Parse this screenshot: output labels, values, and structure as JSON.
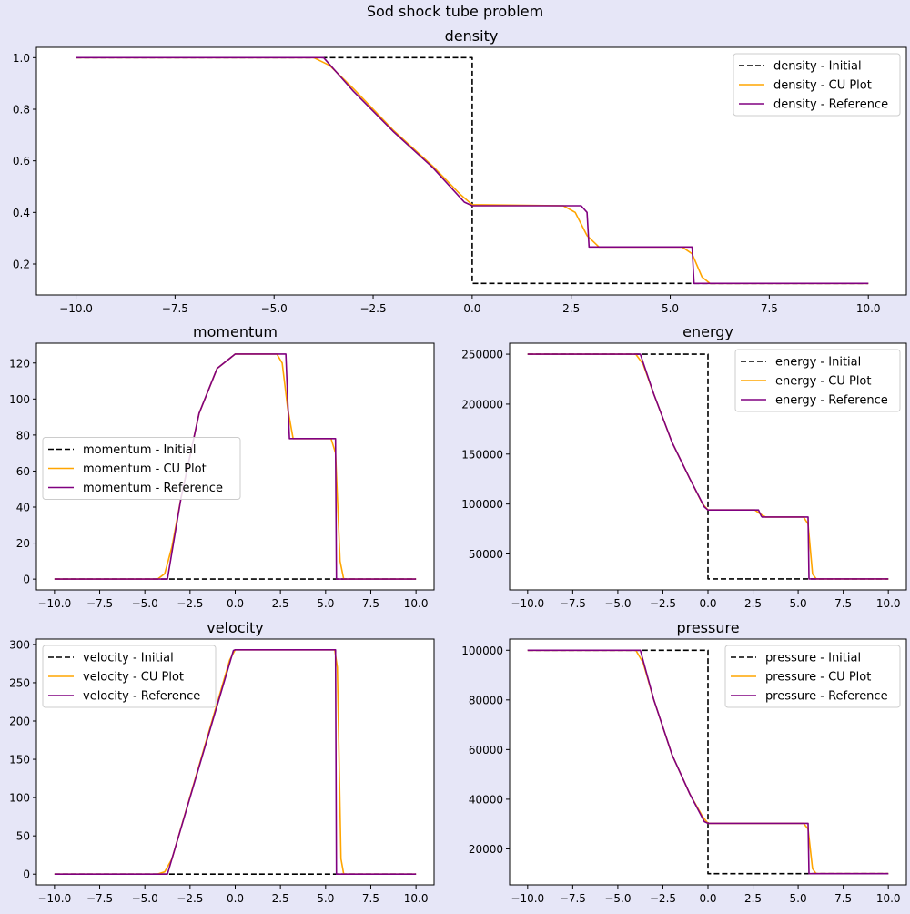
{
  "figure": {
    "suptitle": "Sod shock tube problem"
  },
  "colors": {
    "initial": "#000000",
    "cu": "#ffa500",
    "reference": "#800080",
    "background": "#e6e6f7",
    "axes_bg": "#ffffff"
  },
  "chart_data": [
    {
      "type": "line",
      "title": "density",
      "xlim": [
        -11,
        10.96
      ],
      "ylim": [
        0.08,
        1.04
      ],
      "xticks": [
        -10.0,
        -7.5,
        -5.0,
        -2.5,
        0.0,
        2.5,
        5.0,
        7.5,
        10.0
      ],
      "xtick_labels": [
        "−10.0",
        "−7.5",
        "−5.0",
        "−2.5",
        "0.0",
        "2.5",
        "5.0",
        "7.5",
        "10.0"
      ],
      "yticks": [
        0.2,
        0.4,
        0.6,
        0.8,
        1.0
      ],
      "ytick_labels": [
        "0.2",
        "0.4",
        "0.6",
        "0.8",
        "1.0"
      ],
      "legend": "top-right",
      "series": [
        {
          "name": "density - Initial",
          "style": "dashed",
          "color": "#000000",
          "x": [
            -10,
            0,
            0,
            10
          ],
          "y": [
            1.0,
            1.0,
            0.125,
            0.125
          ]
        },
        {
          "name": "density - CU Plot",
          "style": "solid",
          "color": "#ffa500",
          "x": [
            -10,
            -4.0,
            -3.6,
            -3.0,
            -2.0,
            -1.0,
            -0.3,
            0.0,
            2.3,
            2.6,
            2.9,
            3.2,
            5.3,
            5.55,
            5.8,
            6.0,
            10
          ],
          "y": [
            1.0,
            1.0,
            0.97,
            0.88,
            0.72,
            0.58,
            0.47,
            0.43,
            0.426,
            0.4,
            0.31,
            0.266,
            0.266,
            0.24,
            0.15,
            0.125,
            0.125
          ]
        },
        {
          "name": "density - Reference",
          "style": "solid",
          "color": "#800080",
          "x": [
            -10,
            -3.75,
            -3.0,
            -2.0,
            -1.0,
            -0.2,
            0.0,
            2.75,
            2.9,
            2.95,
            5.55,
            5.6,
            10
          ],
          "y": [
            1.0,
            1.0,
            0.87,
            0.715,
            0.575,
            0.44,
            0.426,
            0.426,
            0.4,
            0.266,
            0.266,
            0.125,
            0.125
          ]
        }
      ]
    },
    {
      "type": "line",
      "title": "momentum",
      "xlim": [
        -11,
        11
      ],
      "ylim": [
        -6,
        131
      ],
      "xticks": [
        -10.0,
        -7.5,
        -5.0,
        -2.5,
        0.0,
        2.5,
        5.0,
        7.5,
        10.0
      ],
      "xtick_labels": [
        "−10.0",
        "−7.5",
        "−5.0",
        "−2.5",
        "0.0",
        "2.5",
        "5.0",
        "7.5",
        "10.0"
      ],
      "yticks": [
        0,
        20,
        40,
        60,
        80,
        100,
        120
      ],
      "ytick_labels": [
        "0",
        "20",
        "40",
        "60",
        "80",
        "100",
        "120"
      ],
      "legend": "center-left",
      "series": [
        {
          "name": "momentum - Initial",
          "style": "dashed",
          "color": "#000000",
          "x": [
            -10,
            10
          ],
          "y": [
            0,
            0
          ]
        },
        {
          "name": "momentum - CU Plot",
          "style": "solid",
          "color": "#ffa500",
          "x": [
            -10,
            -4.3,
            -3.9,
            -3.5,
            -3.0,
            -2.0,
            -1.0,
            0.0,
            2.3,
            2.6,
            2.9,
            3.2,
            5.3,
            5.55,
            5.8,
            6.0,
            10
          ],
          "y": [
            0,
            0,
            3,
            18,
            45,
            92,
            117,
            125,
            125,
            120,
            95,
            78,
            78,
            70,
            10,
            0,
            0
          ]
        },
        {
          "name": "momentum - Reference",
          "style": "solid",
          "color": "#800080",
          "x": [
            -10,
            -3.75,
            -3.0,
            -2.0,
            -1.0,
            0.0,
            2.8,
            2.9,
            3.0,
            5.55,
            5.6,
            10
          ],
          "y": [
            0,
            0,
            45,
            92,
            117,
            125,
            125,
            100,
            78,
            78,
            0,
            0
          ]
        }
      ]
    },
    {
      "type": "line",
      "title": "energy",
      "xlim": [
        -11,
        11
      ],
      "ylim": [
        14000,
        261000
      ],
      "xticks": [
        -10.0,
        -7.5,
        -5.0,
        -2.5,
        0.0,
        2.5,
        5.0,
        7.5,
        10.0
      ],
      "xtick_labels": [
        "−10.0",
        "−7.5",
        "−5.0",
        "−2.5",
        "0.0",
        "2.5",
        "5.0",
        "7.5",
        "10.0"
      ],
      "yticks": [
        50000,
        100000,
        150000,
        200000,
        250000
      ],
      "ytick_labels": [
        "50000",
        "100000",
        "150000",
        "200000",
        "250000"
      ],
      "legend": "top-right",
      "series": [
        {
          "name": "energy - Initial",
          "style": "dashed",
          "color": "#000000",
          "x": [
            -10,
            0,
            0,
            10
          ],
          "y": [
            250000,
            250000,
            25000,
            25000
          ]
        },
        {
          "name": "energy - CU Plot",
          "style": "solid",
          "color": "#ffa500",
          "x": [
            -10,
            -4.0,
            -3.6,
            -3.0,
            -2.0,
            -1.0,
            -0.3,
            0.0,
            2.6,
            2.9,
            3.2,
            5.3,
            5.55,
            5.8,
            6.0,
            10
          ],
          "y": [
            250000,
            250000,
            240000,
            210000,
            162000,
            125000,
            100000,
            94000,
            94000,
            90000,
            87000,
            87000,
            80000,
            30000,
            25000,
            25000
          ]
        },
        {
          "name": "energy - Reference",
          "style": "solid",
          "color": "#800080",
          "x": [
            -10,
            -3.75,
            -3.0,
            -2.0,
            -1.0,
            -0.2,
            0.0,
            2.8,
            2.95,
            3.0,
            5.55,
            5.6,
            10
          ],
          "y": [
            250000,
            250000,
            210000,
            162000,
            125000,
            97000,
            94000,
            94000,
            88000,
            87000,
            87000,
            25000,
            25000
          ]
        }
      ]
    },
    {
      "type": "line",
      "title": "velocity",
      "xlim": [
        -11,
        11
      ],
      "ylim": [
        -14,
        307
      ],
      "xticks": [
        -10.0,
        -7.5,
        -5.0,
        -2.5,
        0.0,
        2.5,
        5.0,
        7.5,
        10.0
      ],
      "xtick_labels": [
        "−10.0",
        "−7.5",
        "−5.0",
        "−2.5",
        "0.0",
        "2.5",
        "5.0",
        "7.5",
        "10.0"
      ],
      "yticks": [
        0,
        50,
        100,
        150,
        200,
        250,
        300
      ],
      "ytick_labels": [
        "0",
        "50",
        "100",
        "150",
        "200",
        "250",
        "300"
      ],
      "legend": "top-left",
      "series": [
        {
          "name": "velocity - Initial",
          "style": "dashed",
          "color": "#000000",
          "x": [
            -10,
            10
          ],
          "y": [
            0,
            0
          ]
        },
        {
          "name": "velocity - CU Plot",
          "style": "solid",
          "color": "#ffa500",
          "x": [
            -10,
            -4.3,
            -3.9,
            -3.5,
            -0.3,
            0.0,
            5.5,
            5.65,
            5.85,
            6.0,
            10
          ],
          "y": [
            0,
            0,
            3,
            20,
            280,
            293,
            293,
            270,
            20,
            0,
            0
          ]
        },
        {
          "name": "velocity - Reference",
          "style": "solid",
          "color": "#800080",
          "x": [
            -10,
            -3.75,
            -0.1,
            0.0,
            5.55,
            5.6,
            10
          ],
          "y": [
            0,
            0,
            292,
            293,
            293,
            0,
            0
          ]
        }
      ]
    },
    {
      "type": "line",
      "title": "pressure",
      "xlim": [
        -11,
        11
      ],
      "ylim": [
        5500,
        104500
      ],
      "xticks": [
        -10.0,
        -7.5,
        -5.0,
        -2.5,
        0.0,
        2.5,
        5.0,
        7.5,
        10.0
      ],
      "xtick_labels": [
        "−10.0",
        "−7.5",
        "−5.0",
        "−2.5",
        "0.0",
        "2.5",
        "5.0",
        "7.5",
        "10.0"
      ],
      "yticks": [
        20000,
        40000,
        60000,
        80000,
        100000
      ],
      "ytick_labels": [
        "20000",
        "40000",
        "60000",
        "80000",
        "100000"
      ],
      "legend": "top-right",
      "series": [
        {
          "name": "pressure - Initial",
          "style": "dashed",
          "color": "#000000",
          "x": [
            -10,
            0,
            0,
            10
          ],
          "y": [
            100000,
            100000,
            10000,
            10000
          ]
        },
        {
          "name": "pressure - CU Plot",
          "style": "solid",
          "color": "#ffa500",
          "x": [
            -10,
            -4.0,
            -3.6,
            -3.0,
            -2.0,
            -1.0,
            -0.3,
            0.0,
            5.3,
            5.55,
            5.8,
            6.0,
            10
          ],
          "y": [
            100000,
            100000,
            95000,
            80000,
            58000,
            42000,
            33000,
            30300,
            30300,
            28000,
            12000,
            10000,
            10000
          ]
        },
        {
          "name": "pressure - Reference",
          "style": "solid",
          "color": "#800080",
          "x": [
            -10,
            -3.75,
            -3.0,
            -2.0,
            -1.0,
            -0.2,
            0.0,
            5.55,
            5.6,
            10
          ],
          "y": [
            100000,
            100000,
            80000,
            58000,
            42000,
            31000,
            30300,
            30300,
            10000,
            10000
          ]
        }
      ]
    }
  ]
}
